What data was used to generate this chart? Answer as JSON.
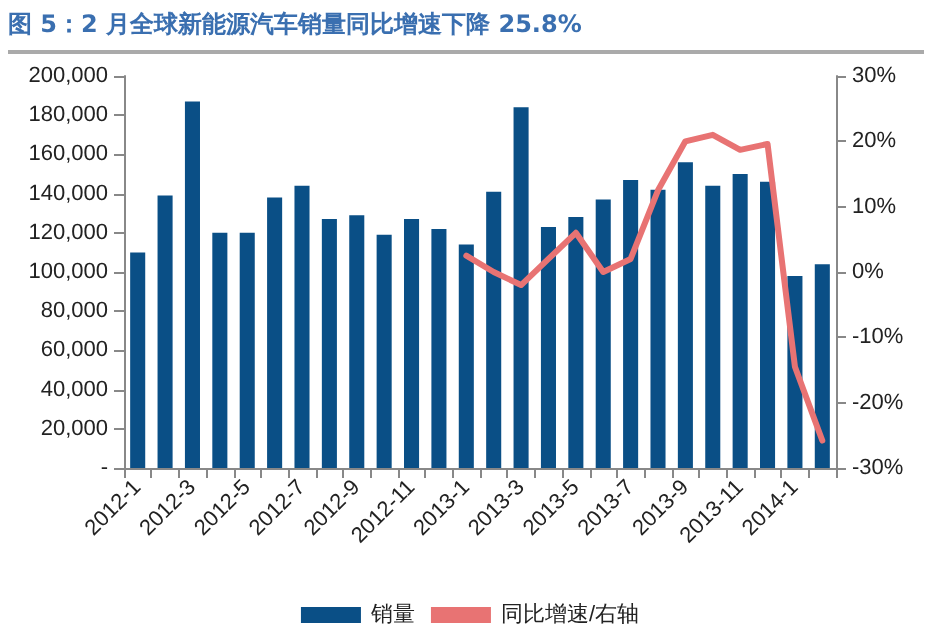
{
  "chart_data": {
    "type": "bar",
    "title": "图 5：2 月全球新能源汽车销量同比增速下降 25.8%",
    "categories": [
      "2012-1",
      null,
      "2012-3",
      null,
      "2012-5",
      null,
      "2012-7",
      null,
      "2012-9",
      null,
      "2012-11",
      null,
      "2013-1",
      null,
      "2013-3",
      null,
      "2013-5",
      null,
      "2013-7",
      null,
      "2013-9",
      null,
      "2013-11",
      null,
      "2014-1",
      null
    ],
    "series": [
      {
        "name": "销量",
        "color": "#0a4f86",
        "values": [
          110000,
          139000,
          187000,
          120000,
          120000,
          138000,
          144000,
          127000,
          129000,
          119000,
          127000,
          122000,
          114000,
          141000,
          184000,
          123000,
          128000,
          137000,
          147000,
          142000,
          156000,
          144000,
          150000,
          146000,
          98000,
          104000
        ]
      },
      {
        "name": "同比增速/右轴",
        "type": "line",
        "axis": "y2",
        "color": "#e87373",
        "values": [
          null,
          null,
          null,
          null,
          null,
          null,
          null,
          null,
          null,
          null,
          null,
          null,
          2.5,
          0,
          -2,
          2,
          6,
          0,
          2,
          12.5,
          20,
          21,
          18.7,
          19.6,
          -14.5,
          -25.8
        ]
      }
    ],
    "ylim": [
      0,
      200000
    ],
    "yticks": [
      {
        "value": 0,
        "label": "-"
      },
      {
        "value": 20000,
        "label": "20,000"
      },
      {
        "value": 40000,
        "label": "40,000"
      },
      {
        "value": 60000,
        "label": "60,000"
      },
      {
        "value": 80000,
        "label": "80,000"
      },
      {
        "value": 100000,
        "label": "100,000"
      },
      {
        "value": 120000,
        "label": "120,000"
      },
      {
        "value": 140000,
        "label": "140,000"
      },
      {
        "value": 160000,
        "label": "160,000"
      },
      {
        "value": 180000,
        "label": "180,000"
      },
      {
        "value": 200000,
        "label": "200,000"
      }
    ],
    "y2lim": [
      -30,
      30
    ],
    "y2ticks": [
      {
        "value": -30,
        "label": "-30%"
      },
      {
        "value": -20,
        "label": "-20%"
      },
      {
        "value": -10,
        "label": "-10%"
      },
      {
        "value": 0,
        "label": "0%"
      },
      {
        "value": 10,
        "label": "10%"
      },
      {
        "value": 20,
        "label": "20%"
      },
      {
        "value": 30,
        "label": "30%"
      }
    ],
    "grid": false,
    "legend": "bottom",
    "marker": "none",
    "line_style": "solid"
  }
}
